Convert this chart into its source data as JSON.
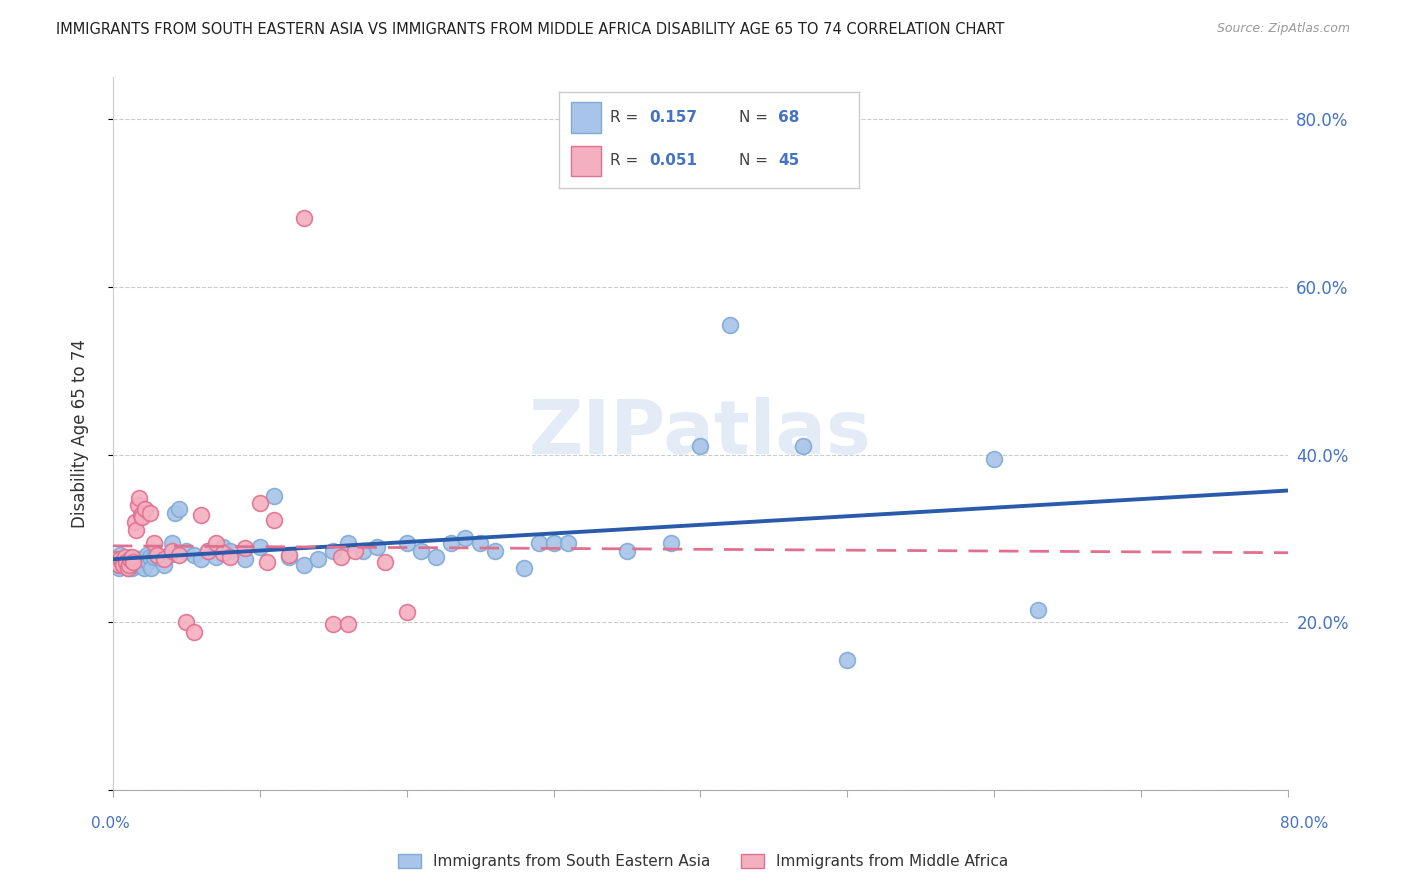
{
  "title": "IMMIGRANTS FROM SOUTH EASTERN ASIA VS IMMIGRANTS FROM MIDDLE AFRICA DISABILITY AGE 65 TO 74 CORRELATION CHART",
  "source": "Source: ZipAtlas.com",
  "ylabel": "Disability Age 65 to 74",
  "yticks": [
    0.0,
    0.2,
    0.4,
    0.6,
    0.8
  ],
  "ytick_labels": [
    "",
    "20.0%",
    "40.0%",
    "60.0%",
    "80.0%"
  ],
  "xlim": [
    0.0,
    0.8
  ],
  "ylim": [
    0.0,
    0.85
  ],
  "series1_color": "#a8c4e8",
  "series1_edge": "#7faad4",
  "series1_line": "#2a5baa",
  "series2_color": "#f4afc0",
  "series2_edge": "#e07090",
  "series2_line": "#e07090",
  "series1_label": "Immigrants from South Eastern Asia",
  "series2_label": "Immigrants from Middle Africa",
  "R1": 0.157,
  "N1": 68,
  "R2": 0.051,
  "N2": 45,
  "watermark": "ZIPatlas",
  "blue_x": [
    0.003,
    0.004,
    0.005,
    0.006,
    0.007,
    0.008,
    0.009,
    0.01,
    0.011,
    0.012,
    0.013,
    0.014,
    0.015,
    0.016,
    0.017,
    0.018,
    0.019,
    0.02,
    0.021,
    0.022,
    0.023,
    0.024,
    0.025,
    0.026,
    0.028,
    0.03,
    0.032,
    0.035,
    0.038,
    0.04,
    0.042,
    0.045,
    0.05,
    0.055,
    0.06,
    0.065,
    0.07,
    0.075,
    0.08,
    0.09,
    0.1,
    0.11,
    0.12,
    0.13,
    0.14,
    0.15,
    0.16,
    0.17,
    0.18,
    0.2,
    0.21,
    0.22,
    0.23,
    0.24,
    0.25,
    0.26,
    0.28,
    0.29,
    0.3,
    0.31,
    0.35,
    0.38,
    0.4,
    0.42,
    0.47,
    0.5,
    0.6,
    0.63
  ],
  "blue_y": [
    0.27,
    0.265,
    0.28,
    0.275,
    0.27,
    0.268,
    0.272,
    0.265,
    0.275,
    0.278,
    0.265,
    0.27,
    0.275,
    0.268,
    0.272,
    0.275,
    0.268,
    0.272,
    0.265,
    0.275,
    0.28,
    0.272,
    0.278,
    0.265,
    0.278,
    0.28,
    0.275,
    0.268,
    0.28,
    0.295,
    0.33,
    0.335,
    0.285,
    0.28,
    0.275,
    0.285,
    0.278,
    0.29,
    0.285,
    0.275,
    0.29,
    0.35,
    0.278,
    0.268,
    0.275,
    0.285,
    0.295,
    0.285,
    0.29,
    0.295,
    0.285,
    0.278,
    0.295,
    0.3,
    0.295,
    0.285,
    0.265,
    0.295,
    0.295,
    0.295,
    0.285,
    0.295,
    0.41,
    0.555,
    0.41,
    0.155,
    0.395,
    0.215
  ],
  "pink_x": [
    0.002,
    0.003,
    0.004,
    0.005,
    0.006,
    0.007,
    0.008,
    0.009,
    0.01,
    0.011,
    0.012,
    0.013,
    0.014,
    0.015,
    0.016,
    0.017,
    0.018,
    0.019,
    0.02,
    0.022,
    0.025,
    0.028,
    0.03,
    0.035,
    0.04,
    0.045,
    0.05,
    0.055,
    0.06,
    0.065,
    0.07,
    0.075,
    0.08,
    0.09,
    0.1,
    0.105,
    0.11,
    0.12,
    0.13,
    0.15,
    0.155,
    0.16,
    0.165,
    0.185,
    0.2
  ],
  "pink_y": [
    0.275,
    0.27,
    0.268,
    0.275,
    0.272,
    0.268,
    0.278,
    0.272,
    0.265,
    0.268,
    0.275,
    0.278,
    0.272,
    0.32,
    0.31,
    0.34,
    0.348,
    0.328,
    0.325,
    0.335,
    0.33,
    0.295,
    0.28,
    0.275,
    0.285,
    0.28,
    0.2,
    0.188,
    0.328,
    0.285,
    0.295,
    0.282,
    0.278,
    0.288,
    0.342,
    0.272,
    0.322,
    0.28,
    0.682,
    0.198,
    0.278,
    0.198,
    0.285,
    0.272,
    0.212
  ]
}
